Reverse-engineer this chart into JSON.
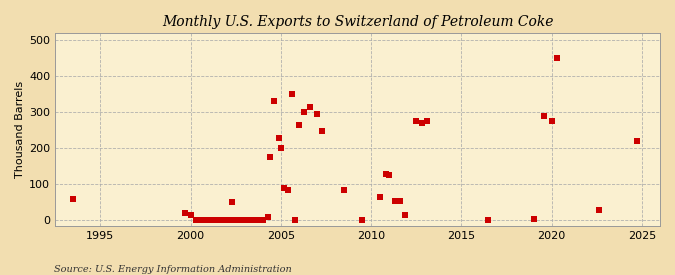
{
  "title": "Monthly U.S. Exports to Switzerland of Petroleum Coke",
  "ylabel": "Thousand Barrels",
  "source": "Source: U.S. Energy Information Administration",
  "background_color": "#f2deb0",
  "plot_background_color": "#faf0d0",
  "marker_color": "#cc0000",
  "marker_size": 18,
  "xlim": [
    1992.5,
    2026
  ],
  "ylim": [
    -15,
    520
  ],
  "xticks": [
    1995,
    2000,
    2005,
    2010,
    2015,
    2020,
    2025
  ],
  "yticks": [
    0,
    100,
    200,
    300,
    400,
    500
  ],
  "data_points": [
    [
      1993.5,
      60
    ],
    [
      1999.7,
      20
    ],
    [
      2000.0,
      15
    ],
    [
      2000.3,
      0
    ],
    [
      2000.5,
      0
    ],
    [
      2000.7,
      0
    ],
    [
      2000.9,
      0
    ],
    [
      2001.1,
      0
    ],
    [
      2001.3,
      0
    ],
    [
      2001.5,
      0
    ],
    [
      2001.7,
      0
    ],
    [
      2001.9,
      0
    ],
    [
      2002.1,
      0
    ],
    [
      2002.4,
      0
    ],
    [
      2002.6,
      0
    ],
    [
      2002.8,
      0
    ],
    [
      2003.0,
      0
    ],
    [
      2003.2,
      0
    ],
    [
      2003.4,
      0
    ],
    [
      2003.6,
      0
    ],
    [
      2003.8,
      0
    ],
    [
      2004.0,
      0
    ],
    [
      2002.3,
      50
    ],
    [
      2004.3,
      10
    ],
    [
      2004.4,
      175
    ],
    [
      2004.6,
      330
    ],
    [
      2004.9,
      230
    ],
    [
      2005.0,
      200
    ],
    [
      2005.2,
      90
    ],
    [
      2005.4,
      85
    ],
    [
      2005.6,
      350
    ],
    [
      2005.8,
      0
    ],
    [
      2006.0,
      265
    ],
    [
      2006.3,
      300
    ],
    [
      2006.6,
      315
    ],
    [
      2007.0,
      295
    ],
    [
      2007.3,
      248
    ],
    [
      2008.5,
      85
    ],
    [
      2009.5,
      0
    ],
    [
      2010.5,
      65
    ],
    [
      2010.8,
      130
    ],
    [
      2011.0,
      125
    ],
    [
      2011.3,
      55
    ],
    [
      2011.6,
      55
    ],
    [
      2011.9,
      15
    ],
    [
      2012.5,
      275
    ],
    [
      2012.8,
      270
    ],
    [
      2013.1,
      275
    ],
    [
      2016.5,
      0
    ],
    [
      2019.0,
      5
    ],
    [
      2019.6,
      290
    ],
    [
      2020.0,
      275
    ],
    [
      2020.3,
      450
    ],
    [
      2022.6,
      30
    ],
    [
      2024.7,
      220
    ]
  ]
}
